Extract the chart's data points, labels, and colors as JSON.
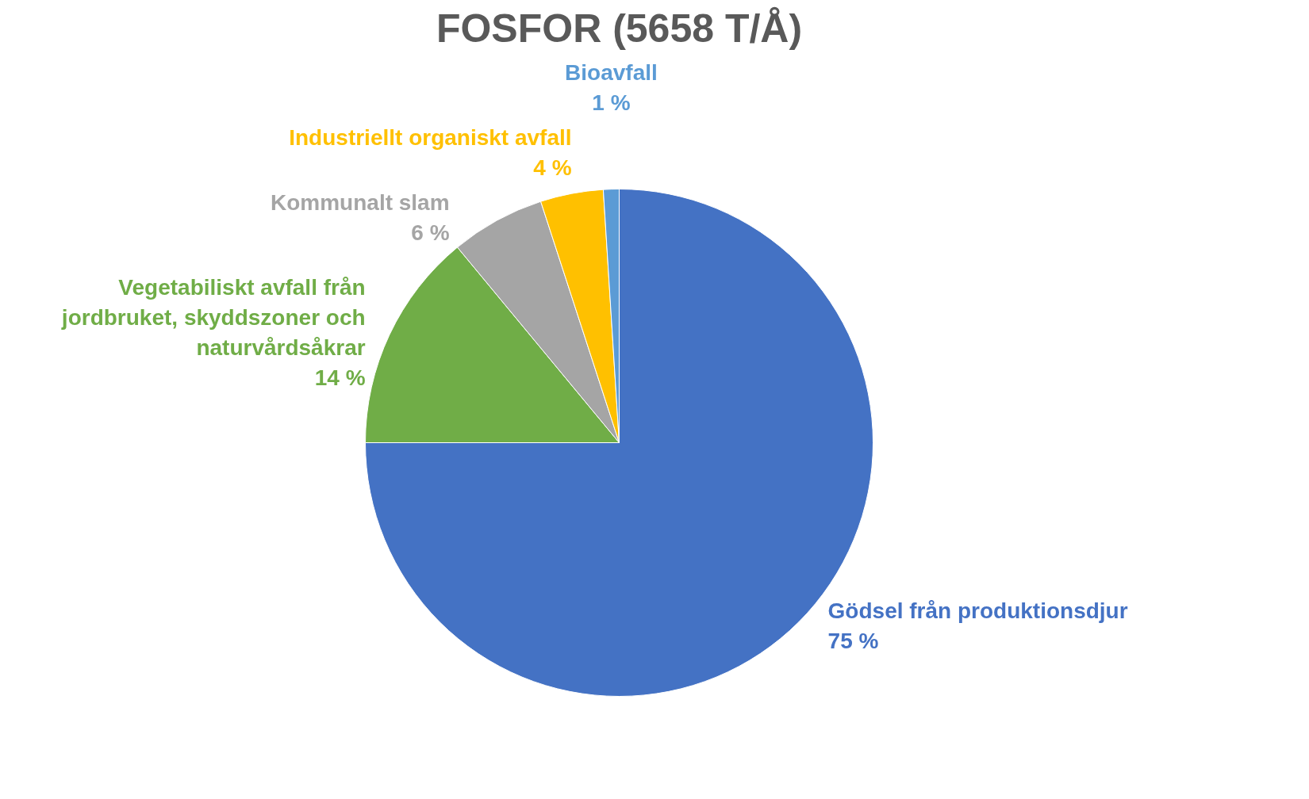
{
  "chart_data": {
    "type": "pie",
    "title": "FOSFOR (5658 T/Å)",
    "categories": [
      "Gödsel från produktionsdjur",
      "Vegetabiliskt avfall från jordbruket, skyddszoner och naturvårdsåkrar",
      "Kommunalt slam",
      "Industriellt organiskt avfall",
      "Bioavfall"
    ],
    "values": [
      75,
      14,
      6,
      4,
      1
    ],
    "colors": [
      "#4472c4",
      "#70ad47",
      "#a5a5a5",
      "#ffc000",
      "#5b9bd5"
    ],
    "value_labels": [
      "75 %",
      "14 %",
      "6 %",
      "4 %",
      "1 %"
    ]
  }
}
